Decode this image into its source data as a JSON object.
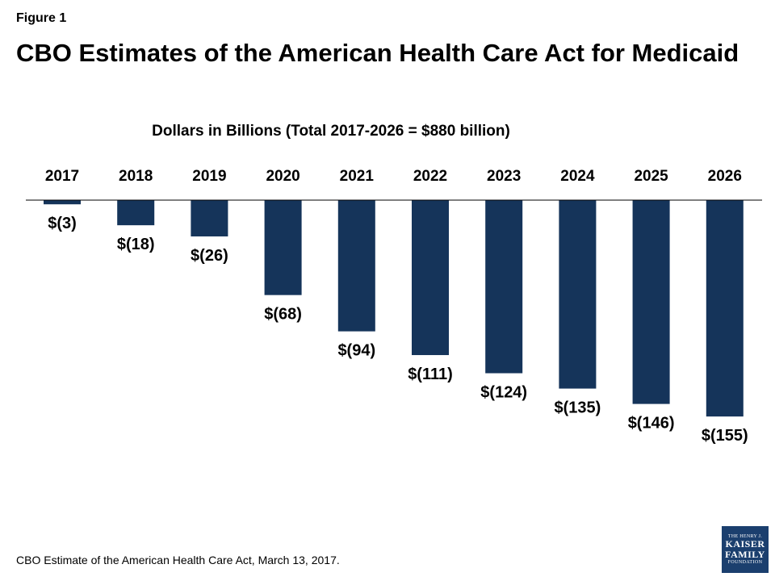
{
  "figure_label": "Figure 1",
  "title": "CBO Estimates of the American Health Care Act for Medicaid",
  "source": "CBO Estimate of the American Health Care Act, March 13, 2017.",
  "logo": {
    "line1": "THE HENRY J.",
    "line2": "KAISER",
    "line3": "FAMILY",
    "line4": "FOUNDATION"
  },
  "colors": {
    "bar": "#15345a",
    "axis": "#000000"
  },
  "chart_data": {
    "type": "bar",
    "title": "Dollars in Billions (Total 2017-2026 = $880 billion)",
    "categories": [
      "2017",
      "2018",
      "2019",
      "2020",
      "2021",
      "2022",
      "2023",
      "2024",
      "2025",
      "2026"
    ],
    "values": [
      -3,
      -18,
      -26,
      -68,
      -94,
      -111,
      -124,
      -135,
      -146,
      -155
    ],
    "data_labels": [
      "$(3)",
      "$(18)",
      "$(26)",
      "$(68)",
      "$(94)",
      "$(111)",
      "$(124)",
      "$(135)",
      "$(146)",
      "$(155)"
    ],
    "xlabel": "",
    "ylabel": "",
    "ylim": [
      -155,
      0
    ],
    "x_axis_position": "top",
    "grid": false,
    "legend": "none"
  }
}
